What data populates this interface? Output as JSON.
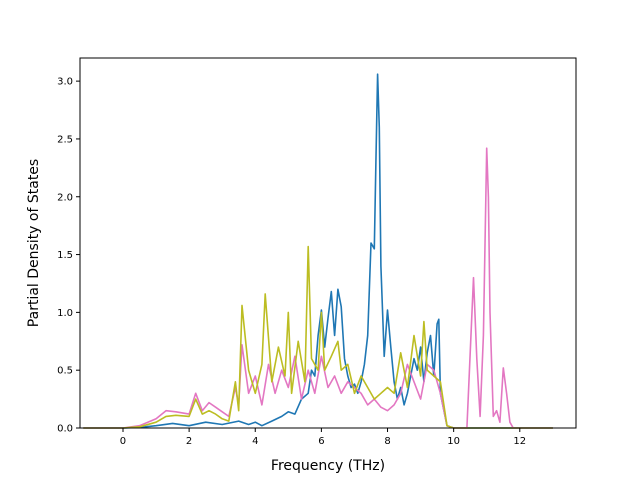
{
  "chart_data": {
    "type": "line",
    "title": "",
    "xlabel": "Frequency (THz)",
    "ylabel": "Partial Density of States",
    "xlim": [
      -1.3,
      13.7
    ],
    "ylim": [
      0,
      3.2
    ],
    "xticks": [
      0,
      2,
      4,
      6,
      8,
      10,
      12
    ],
    "yticks": [
      0.0,
      0.5,
      1.0,
      1.5,
      2.0,
      2.5,
      3.0
    ],
    "xtick_labels": [
      "0",
      "2",
      "4",
      "6",
      "8",
      "10",
      "12"
    ],
    "ytick_labels": [
      "0.0",
      "0.5",
      "1.0",
      "1.5",
      "2.0",
      "2.5",
      "3.0"
    ],
    "grid": false,
    "legend": "none",
    "series": [
      {
        "color": "#1f77b4",
        "x": [
          -1.2,
          0,
          0.5,
          1.0,
          1.5,
          2.0,
          2.5,
          3.0,
          3.5,
          3.8,
          4.0,
          4.2,
          4.5,
          4.8,
          5.0,
          5.2,
          5.4,
          5.6,
          5.7,
          5.8,
          5.9,
          6.0,
          6.1,
          6.2,
          6.3,
          6.4,
          6.5,
          6.6,
          6.7,
          6.8,
          6.9,
          7.0,
          7.1,
          7.2,
          7.3,
          7.4,
          7.5,
          7.6,
          7.65,
          7.7,
          7.75,
          7.8,
          7.9,
          8.0,
          8.1,
          8.2,
          8.3,
          8.4,
          8.5,
          8.6,
          8.7,
          8.8,
          8.9,
          9.0,
          9.1,
          9.2,
          9.3,
          9.4,
          9.5,
          9.55,
          9.6,
          9.8,
          10.0,
          11.0,
          12.0,
          13.0
        ],
        "y": [
          0,
          0,
          0.005,
          0.02,
          0.04,
          0.02,
          0.05,
          0.03,
          0.06,
          0.03,
          0.05,
          0.02,
          0.06,
          0.1,
          0.14,
          0.12,
          0.25,
          0.3,
          0.5,
          0.45,
          0.8,
          1.02,
          0.7,
          0.95,
          1.18,
          0.8,
          1.2,
          1.05,
          0.6,
          0.45,
          0.35,
          0.38,
          0.3,
          0.4,
          0.55,
          0.8,
          1.6,
          1.55,
          2.3,
          3.06,
          2.6,
          1.4,
          0.62,
          1.02,
          0.7,
          0.4,
          0.25,
          0.35,
          0.2,
          0.3,
          0.45,
          0.6,
          0.5,
          0.7,
          0.4,
          0.65,
          0.8,
          0.45,
          0.9,
          0.94,
          0.3,
          0.02,
          0,
          0,
          0,
          0
        ]
      },
      {
        "color": "#e377c2",
        "x": [
          -1.2,
          0,
          0.5,
          1.0,
          1.3,
          1.6,
          2.0,
          2.2,
          2.4,
          2.6,
          2.8,
          3.0,
          3.2,
          3.4,
          3.5,
          3.6,
          3.8,
          4.0,
          4.2,
          4.4,
          4.6,
          4.8,
          5.0,
          5.2,
          5.4,
          5.6,
          5.8,
          6.0,
          6.2,
          6.4,
          6.6,
          6.8,
          7.0,
          7.2,
          7.4,
          7.6,
          7.8,
          8.0,
          8.2,
          8.4,
          8.6,
          8.8,
          9.0,
          9.2,
          9.4,
          9.6,
          9.8,
          10.0,
          10.4,
          10.6,
          10.7,
          10.8,
          10.9,
          11.0,
          11.05,
          11.1,
          11.2,
          11.3,
          11.4,
          11.5,
          11.6,
          11.7,
          11.8,
          12.0,
          13.0
        ],
        "y": [
          0,
          0,
          0.02,
          0.08,
          0.15,
          0.14,
          0.12,
          0.3,
          0.15,
          0.22,
          0.18,
          0.14,
          0.1,
          0.35,
          0.2,
          0.72,
          0.3,
          0.45,
          0.2,
          0.55,
          0.3,
          0.5,
          0.35,
          0.62,
          0.25,
          0.5,
          0.3,
          0.62,
          0.35,
          0.45,
          0.3,
          0.4,
          0.35,
          0.3,
          0.2,
          0.25,
          0.18,
          0.15,
          0.2,
          0.3,
          0.55,
          0.4,
          0.25,
          0.55,
          0.5,
          0.3,
          0.02,
          0,
          0,
          1.3,
          0.6,
          0.1,
          0.8,
          2.42,
          2.0,
          1.0,
          0.1,
          0.15,
          0.05,
          0.52,
          0.3,
          0.05,
          0,
          0,
          0
        ]
      },
      {
        "color": "#bcbd22",
        "x": [
          -1.2,
          0,
          0.5,
          1.0,
          1.3,
          1.6,
          2.0,
          2.2,
          2.4,
          2.6,
          2.8,
          3.0,
          3.2,
          3.4,
          3.5,
          3.6,
          3.8,
          4.0,
          4.2,
          4.3,
          4.5,
          4.7,
          4.9,
          5.0,
          5.1,
          5.3,
          5.5,
          5.6,
          5.7,
          5.9,
          6.0,
          6.1,
          6.3,
          6.5,
          6.6,
          6.8,
          7.0,
          7.2,
          7.4,
          7.6,
          7.8,
          8.0,
          8.2,
          8.4,
          8.6,
          8.8,
          9.0,
          9.1,
          9.2,
          9.4,
          9.6,
          9.8,
          10.0,
          11.0,
          12.0,
          13.0
        ],
        "y": [
          0,
          0,
          0.01,
          0.05,
          0.1,
          0.11,
          0.1,
          0.25,
          0.12,
          0.15,
          0.12,
          0.08,
          0.06,
          0.4,
          0.15,
          1.06,
          0.5,
          0.3,
          0.55,
          1.16,
          0.4,
          0.7,
          0.45,
          1.0,
          0.3,
          0.75,
          0.4,
          1.57,
          0.6,
          0.5,
          1.0,
          0.5,
          0.62,
          0.75,
          0.5,
          0.55,
          0.3,
          0.45,
          0.35,
          0.25,
          0.3,
          0.35,
          0.3,
          0.65,
          0.35,
          0.8,
          0.45,
          0.92,
          0.5,
          0.45,
          0.4,
          0.02,
          0,
          0,
          0,
          0
        ]
      }
    ]
  }
}
